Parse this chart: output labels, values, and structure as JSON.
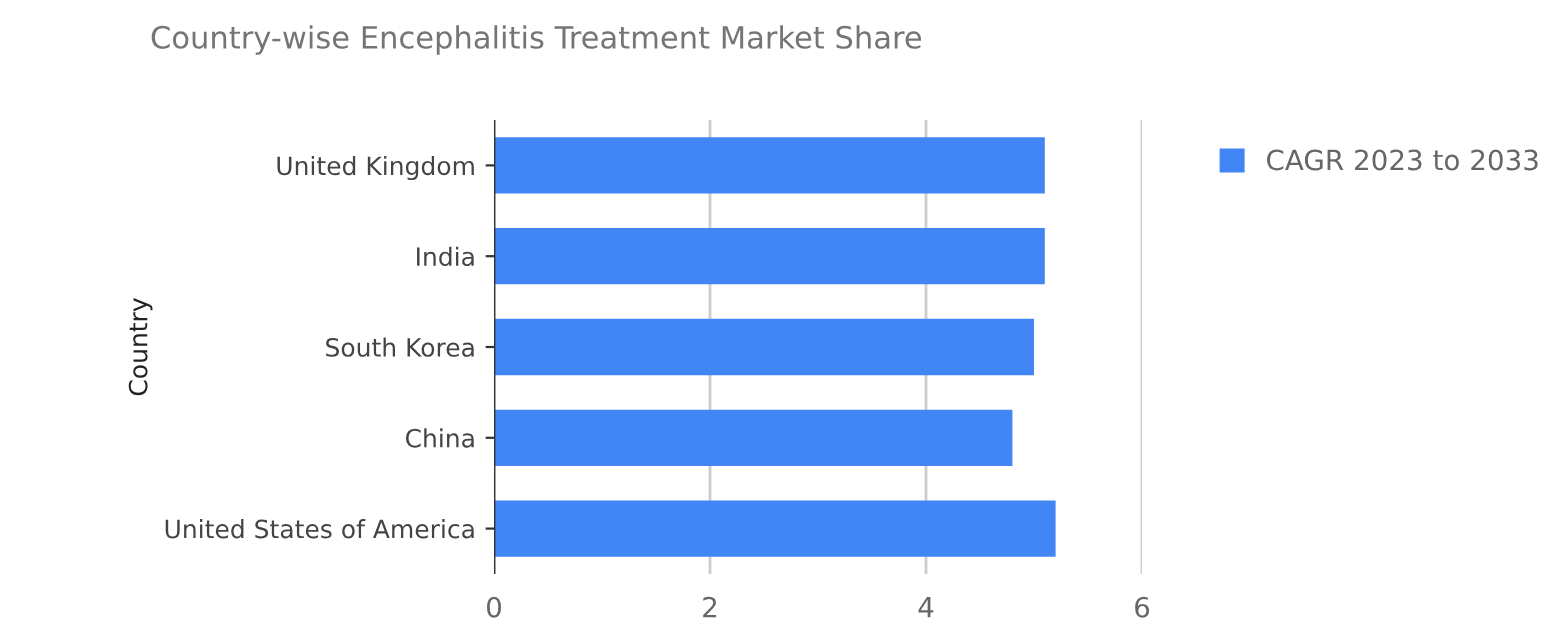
{
  "chart_data": {
    "type": "bar",
    "orientation": "horizontal",
    "title": "Country-wise Encephalitis Treatment Market Share",
    "ylabel": "Country",
    "categories": [
      "United Kingdom",
      "India",
      "South Korea",
      "China",
      "United States of America"
    ],
    "series": [
      {
        "name": "CAGR 2023 to 2033",
        "color": "#4285f4",
        "values": [
          5.1,
          5.1,
          5.0,
          4.8,
          5.2
        ]
      }
    ],
    "xlim": [
      0,
      6
    ],
    "xticks": [
      0,
      2,
      4,
      6
    ],
    "grid": "x",
    "legend": "top right"
  }
}
